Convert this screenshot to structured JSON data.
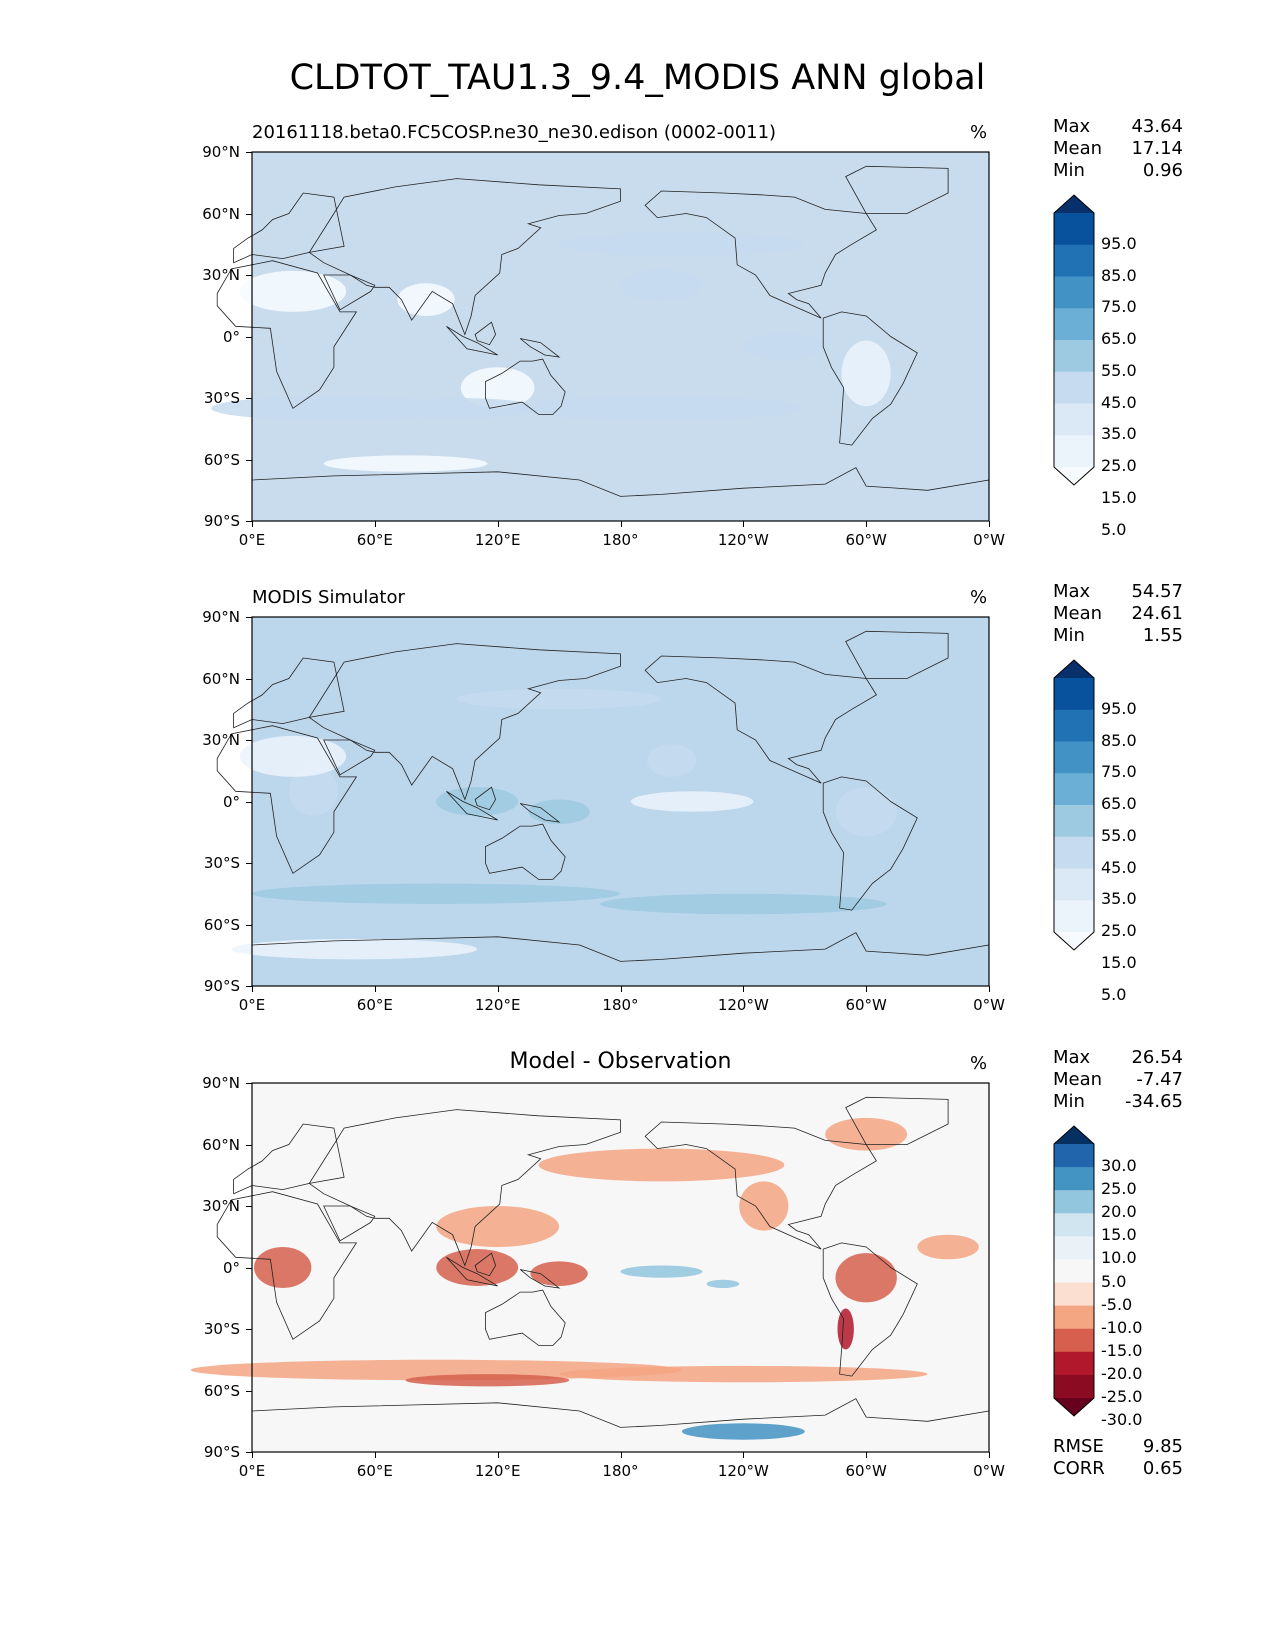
{
  "figure_title": "CLDTOT_TAU1.3_9.4_MODIS ANN global",
  "lon_ticks": [
    "0°E",
    "60°E",
    "120°E",
    "180°",
    "120°W",
    "60°W",
    "0°W"
  ],
  "lat_ticks": [
    "90°N",
    "60°N",
    "30°N",
    "0°",
    "30°S",
    "60°S",
    "90°S"
  ],
  "panels": [
    {
      "title": "20161118.beta0.FC5COSP.ne30_ne30.edison (0002-0011)",
      "title_align": "left",
      "unit": "%",
      "stats": [
        {
          "label": "Max",
          "value": "43.64"
        },
        {
          "label": "Mean",
          "value": "17.14"
        },
        {
          "label": "Min",
          "value": "0.96"
        }
      ],
      "colorbar": {
        "labels": [
          "95.0",
          "85.0",
          "75.0",
          "65.0",
          "55.0",
          "45.0",
          "35.0",
          "25.0",
          "15.0",
          "5.0"
        ],
        "colors": [
          "#08306b",
          "#08519c",
          "#2171b5",
          "#4292c6",
          "#6baed6",
          "#9ecae1",
          "#c6dbef",
          "#dbe9f6",
          "#ebf3fb",
          "#f7fbff"
        ]
      },
      "base_color": "#c9dcee"
    },
    {
      "title": "MODIS Simulator",
      "title_align": "left",
      "unit": "%",
      "stats": [
        {
          "label": "Max",
          "value": "54.57"
        },
        {
          "label": "Mean",
          "value": "24.61"
        },
        {
          "label": "Min",
          "value": "1.55"
        }
      ],
      "colorbar": {
        "labels": [
          "95.0",
          "85.0",
          "75.0",
          "65.0",
          "55.0",
          "45.0",
          "35.0",
          "25.0",
          "15.0",
          "5.0"
        ],
        "colors": [
          "#08306b",
          "#08519c",
          "#2171b5",
          "#4292c6",
          "#6baed6",
          "#9ecae1",
          "#c6dbef",
          "#dbe9f6",
          "#ebf3fb",
          "#f7fbff"
        ]
      },
      "base_color": "#bcd6ec"
    },
    {
      "title": "Model - Observation",
      "title_align": "center",
      "unit": "%",
      "stats": [
        {
          "label": "Max",
          "value": "26.54"
        },
        {
          "label": "Mean",
          "value": "-7.47"
        },
        {
          "label": "Min",
          "value": "-34.65"
        }
      ],
      "colorbar": {
        "labels": [
          "30.0",
          "25.0",
          "20.0",
          "15.0",
          "10.0",
          "5.0",
          "-5.0",
          "-10.0",
          "-15.0",
          "-20.0",
          "-25.0",
          "-30.0"
        ],
        "colors": [
          "#053061",
          "#2166ac",
          "#4393c3",
          "#92c5de",
          "#d1e5f0",
          "#eaf2f7",
          "#f7f7f7",
          "#fbe0d2",
          "#f4a582",
          "#d6604d",
          "#b2182b",
          "#8b0c22",
          "#67001f"
        ]
      },
      "base_color": "#f7f7f7",
      "extra_stats": [
        {
          "label": "RMSE",
          "value": "9.85"
        },
        {
          "label": "CORR",
          "value": "0.65"
        }
      ]
    }
  ]
}
